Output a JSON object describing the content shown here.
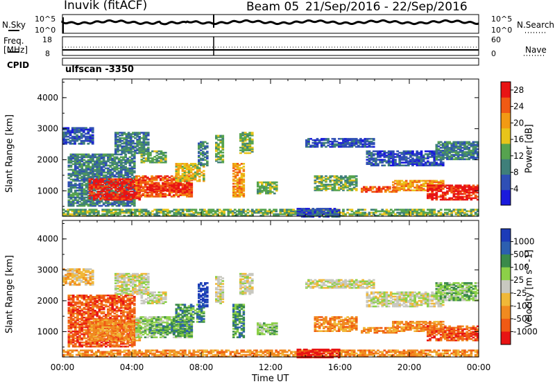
{
  "header": {
    "title": "Inuvik (fitACF)",
    "beam_label": "Beam 05",
    "date_range": "21/Sep/2016 - 22/Sep/2016"
  },
  "noise_panel": {
    "left_label": "N.Sky",
    "left_ticks": [
      "10^5",
      "10^0"
    ],
    "right_label": "N.Search",
    "right_ticks": [
      "10^5",
      "10^0"
    ]
  },
  "freq_panel": {
    "left_label_line1": "Freq.",
    "left_label_line2": "[MHz]",
    "left_ticks": [
      "18",
      "8"
    ],
    "right_label": "Nave",
    "right_ticks": [
      "60",
      "0"
    ]
  },
  "cpid": {
    "label": "CPID",
    "value": "ulfscan -3350"
  },
  "colors": {
    "power": [
      "#1a1adc",
      "#2f4fb5",
      "#3f7f7a",
      "#56a34f",
      "#e8c41a",
      "#f29a14",
      "#f05a14",
      "#e81414"
    ],
    "velocity": [
      "#1c3bb8",
      "#2c5fb0",
      "#3a8a4a",
      "#8cd048",
      "#c8c8c0",
      "#f0b838",
      "#f08a20",
      "#f05a14",
      "#e81414"
    ],
    "velocity_gray": "#c8c8c0"
  },
  "chart_data": [
    {
      "type": "heatmap",
      "name": "power",
      "ylabel": "Slant Range [km]",
      "xlabel": "Time UT",
      "x_ticks": [
        "00:00",
        "04:00",
        "08:00",
        "12:00",
        "16:00",
        "20:00",
        "00:00"
      ],
      "y_ticks": [
        "1000",
        "2000",
        "3000",
        "4000"
      ],
      "ylim": [
        180,
        4600
      ],
      "x_range_hours": [
        0,
        24
      ],
      "colorbar_label": "Power [dB]",
      "colorbar_ticks": [
        "4",
        "8",
        "12",
        "16",
        "20",
        "24",
        "28"
      ],
      "colorbar_range": [
        0,
        30
      ]
    },
    {
      "type": "heatmap",
      "name": "velocity",
      "ylabel": "Slant Range [km]",
      "xlabel": "Time UT",
      "x_ticks": [
        "00:00",
        "04:00",
        "08:00",
        "12:00",
        "16:00",
        "20:00",
        "00:00"
      ],
      "y_ticks": [
        "1000",
        "2000",
        "3000",
        "4000"
      ],
      "ylim": [
        180,
        4600
      ],
      "x_range_hours": [
        0,
        24
      ],
      "colorbar_label": "Velocity [m s^-1]",
      "colorbar_ticks": [
        "1000",
        "500",
        "100",
        "25",
        "-25",
        "-100",
        "-500",
        "-1000"
      ]
    }
  ]
}
